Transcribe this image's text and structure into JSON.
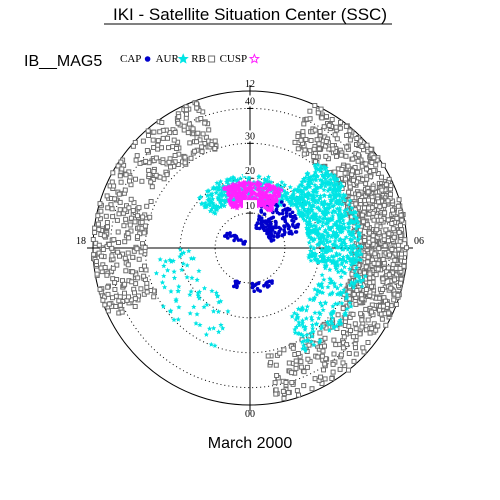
{
  "chart_data": {
    "type": "scatter",
    "projection": "polar",
    "title": "IKI - Satellite Situation Center (SSC)",
    "satellite": "IB__MAG5",
    "subtitle": "March 2000",
    "angular_ticks": [
      "12",
      "18",
      "00",
      "06"
    ],
    "radial_ticks": [
      40,
      30,
      20,
      10
    ],
    "rlim": [
      0,
      45
    ],
    "grid": "dotted",
    "legend_position": "top-left",
    "colors": {
      "CAP": "#0000cc",
      "AUR": "#00e5e5",
      "RB": "#6e6e6e",
      "CUSP": "#ff22ff"
    },
    "legend": [
      {
        "key": "CAP",
        "label": "CAP",
        "marker": "dot",
        "color": "#0000cc"
      },
      {
        "key": "AUR",
        "label": "AUR",
        "marker": "star",
        "color": "#00e5e5"
      },
      {
        "key": "RB",
        "label": "RB",
        "marker": "square",
        "color": "#6e6e6e"
      },
      {
        "key": "CUSP",
        "label": "CUSP",
        "marker": "star",
        "color": "#ff22ff"
      }
    ],
    "series": [
      {
        "name": "RB",
        "marker": "square",
        "regions": [
          {
            "lt": [
              13.5,
              16.5
            ],
            "r": [
              31,
              45
            ],
            "n": 240
          },
          {
            "lt": [
              16.2,
              19.8
            ],
            "r": [
              30,
              45
            ],
            "n": 600
          },
          {
            "lt": [
              19.8,
              23.4
            ],
            "r": [
              30,
              45
            ],
            "n": 180
          },
          {
            "lt": [
              4.2,
              7.2
            ],
            "r": [
              30,
              45
            ],
            "n": 200
          },
          {
            "lt": [
              7.2,
              10.8
            ],
            "r": [
              30,
              45
            ],
            "n": 180
          }
        ]
      },
      {
        "name": "AUR",
        "marker": "star",
        "regions": [
          {
            "lt": [
              14.5,
              18.8
            ],
            "r": [
              17,
              32
            ],
            "n": 650
          },
          {
            "lt": [
              8.8,
              14.5
            ],
            "r": [
              14,
              21
            ],
            "n": 260
          },
          {
            "lt": [
              18.8,
              22.2
            ],
            "r": [
              22,
              34
            ],
            "n": 160
          },
          {
            "lt": [
              1.2,
              6.0
            ],
            "r": [
              16,
              30
            ],
            "n": 70
          }
        ]
      },
      {
        "name": "CAP",
        "marker": "dot",
        "regions": [
          {
            "lt": [
              13.0,
              16.8
            ],
            "r": [
              6,
              16
            ],
            "n": 160
          },
          {
            "lt": [
              21.6,
              23.8
            ],
            "r": [
              10,
              13
            ],
            "n": 22
          },
          {
            "lt": [
              1.2,
              1.6
            ],
            "r": [
              10,
              12
            ],
            "n": 10
          },
          {
            "lt": [
              7.6,
              9.6
            ],
            "r": [
              2,
              8
            ],
            "n": 20
          }
        ]
      },
      {
        "name": "CUSP",
        "marker": "star",
        "regions": [
          {
            "lt": [
              10.4,
              14.0
            ],
            "r": [
              12,
              19
            ],
            "n": 320
          }
        ]
      }
    ]
  }
}
